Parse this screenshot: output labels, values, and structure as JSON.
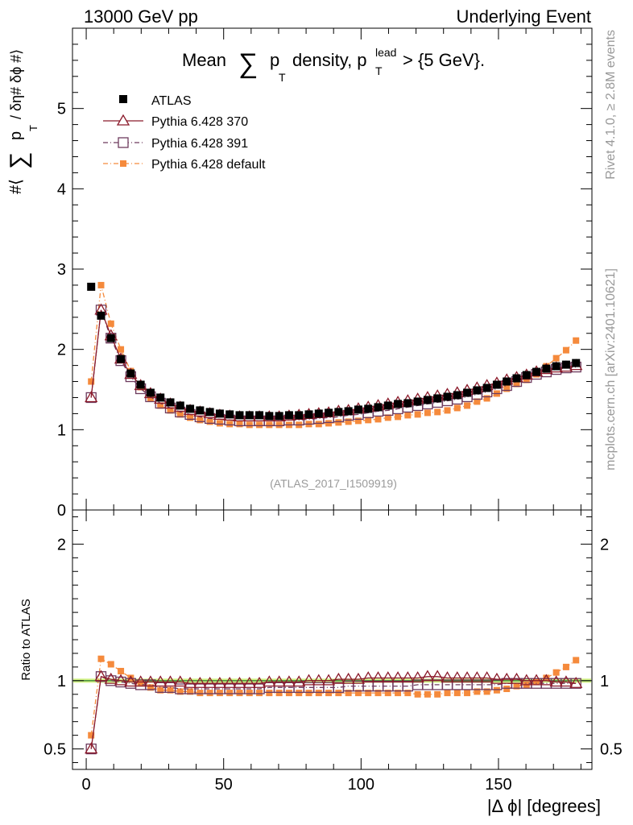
{
  "header": {
    "left": "13000 GeV pp",
    "right": "Underlying Event"
  },
  "side_labels": {
    "rivet": "Rivet 4.1.0, ≥ 2.8M events",
    "mcplots": "mcplots.cern.ch [arXiv:2401.10621]"
  },
  "chart_data": {
    "type": "scatter",
    "title_main": "Mean",
    "title_sum": "∑",
    "title_p": "p",
    "title_sub_T": "T",
    "title_rest": "density, p",
    "title_sup": "lead",
    "title_tail": "> {5 GeV}.",
    "ylabel_hash": "#⟨",
    "ylabel_sum": "∑",
    "ylabel_p": "p",
    "ylabel_T": "T",
    "ylabel_tail": "/ δη# δϕ #⟩",
    "xlabel": "|Δ ϕ| [degrees]",
    "ratio_ylabel": "Ratio to ATLAS",
    "watermark": "(ATLAS_2017_I1509919)",
    "xlim": [
      -5,
      184
    ],
    "ylim_main": [
      0,
      6
    ],
    "ylim_ratio": [
      0.35,
      2.25
    ],
    "x_ticks": [
      "0",
      "50",
      "100",
      "150"
    ],
    "y_ticks_main": [
      "0",
      "1",
      "2",
      "3",
      "4",
      "5"
    ],
    "y_ticks_ratio": [
      "0.5",
      "1",
      "2"
    ],
    "reference_line": 1,
    "x": [
      1.8,
      5.4,
      9.0,
      12.6,
      16.2,
      19.8,
      23.4,
      27.0,
      30.6,
      34.2,
      37.8,
      41.4,
      45.0,
      48.6,
      52.2,
      55.8,
      59.4,
      63.0,
      66.6,
      70.2,
      73.8,
      77.4,
      81.0,
      84.6,
      88.2,
      91.8,
      95.4,
      99.0,
      102.6,
      106.2,
      109.8,
      113.4,
      117.0,
      120.6,
      124.2,
      127.8,
      131.4,
      135.0,
      138.6,
      142.2,
      145.8,
      149.4,
      153.0,
      156.6,
      160.2,
      163.8,
      167.4,
      171.0,
      174.6,
      178.2
    ],
    "series": [
      {
        "name": "ATLAS",
        "marker": "square-filled",
        "color": "#000000",
        "values": [
          2.78,
          2.42,
          2.14,
          1.88,
          1.7,
          1.56,
          1.46,
          1.4,
          1.34,
          1.3,
          1.26,
          1.24,
          1.22,
          1.2,
          1.19,
          1.18,
          1.18,
          1.18,
          1.17,
          1.17,
          1.18,
          1.18,
          1.19,
          1.2,
          1.21,
          1.22,
          1.23,
          1.25,
          1.26,
          1.28,
          1.3,
          1.32,
          1.33,
          1.35,
          1.37,
          1.39,
          1.41,
          1.43,
          1.46,
          1.49,
          1.52,
          1.56,
          1.6,
          1.64,
          1.68,
          1.72,
          1.76,
          1.79,
          1.81,
          1.83
        ],
        "ratio": [
          1.0,
          1.0,
          1.0,
          1.0,
          1.0,
          1.0,
          1.0,
          1.0,
          1.0,
          1.0,
          1.0,
          1.0,
          1.0,
          1.0,
          1.0,
          1.0,
          1.0,
          1.0,
          1.0,
          1.0,
          1.0,
          1.0,
          1.0,
          1.0,
          1.0,
          1.0,
          1.0,
          1.0,
          1.0,
          1.0,
          1.0,
          1.0,
          1.0,
          1.0,
          1.0,
          1.0,
          1.0,
          1.0,
          1.0,
          1.0,
          1.0,
          1.0,
          1.0,
          1.0,
          1.0,
          1.0,
          1.0,
          1.0,
          1.0,
          1.0
        ]
      },
      {
        "name": "Pythia 6.428 370",
        "marker": "triangle-open",
        "color": "#8b1a2a",
        "values": [
          1.4,
          2.49,
          2.17,
          1.88,
          1.69,
          1.55,
          1.45,
          1.38,
          1.32,
          1.28,
          1.24,
          1.22,
          1.2,
          1.18,
          1.17,
          1.16,
          1.16,
          1.16,
          1.16,
          1.16,
          1.17,
          1.18,
          1.19,
          1.2,
          1.21,
          1.23,
          1.24,
          1.26,
          1.28,
          1.3,
          1.32,
          1.34,
          1.36,
          1.38,
          1.4,
          1.42,
          1.44,
          1.46,
          1.49,
          1.52,
          1.55,
          1.58,
          1.62,
          1.65,
          1.68,
          1.72,
          1.75,
          1.77,
          1.78,
          1.8
        ],
        "ratio": [
          0.5,
          1.03,
          1.01,
          1.0,
          0.99,
          0.99,
          0.99,
          0.99,
          0.99,
          0.99,
          0.98,
          0.98,
          0.98,
          0.98,
          0.98,
          0.98,
          0.98,
          0.98,
          0.99,
          0.99,
          0.99,
          0.99,
          1.0,
          1.0,
          1.0,
          1.01,
          1.01,
          1.01,
          1.02,
          1.02,
          1.02,
          1.02,
          1.02,
          1.02,
          1.03,
          1.03,
          1.02,
          1.02,
          1.02,
          1.02,
          1.02,
          1.01,
          1.01,
          1.01,
          1.0,
          1.0,
          1.0,
          0.99,
          0.99,
          0.98
        ]
      },
      {
        "name": "Pythia 6.428 391",
        "marker": "square-open",
        "color": "#6e3b5e",
        "values": [
          1.4,
          2.49,
          2.14,
          1.86,
          1.66,
          1.51,
          1.41,
          1.33,
          1.27,
          1.22,
          1.19,
          1.16,
          1.14,
          1.13,
          1.12,
          1.11,
          1.11,
          1.11,
          1.11,
          1.11,
          1.12,
          1.12,
          1.13,
          1.14,
          1.15,
          1.16,
          1.18,
          1.19,
          1.21,
          1.23,
          1.24,
          1.26,
          1.28,
          1.3,
          1.32,
          1.34,
          1.36,
          1.38,
          1.41,
          1.44,
          1.47,
          1.51,
          1.55,
          1.6,
          1.65,
          1.69,
          1.72,
          1.75,
          1.77,
          1.78
        ],
        "ratio": [
          0.5,
          1.03,
          1.0,
          0.99,
          0.98,
          0.97,
          0.97,
          0.95,
          0.95,
          0.94,
          0.94,
          0.94,
          0.94,
          0.94,
          0.94,
          0.94,
          0.94,
          0.94,
          0.95,
          0.95,
          0.95,
          0.95,
          0.95,
          0.95,
          0.95,
          0.95,
          0.96,
          0.96,
          0.96,
          0.96,
          0.96,
          0.96,
          0.96,
          0.97,
          0.97,
          0.97,
          0.97,
          0.97,
          0.97,
          0.97,
          0.97,
          0.97,
          0.98,
          0.98,
          0.98,
          0.98,
          0.98,
          0.98,
          0.98,
          0.98
        ]
      },
      {
        "name": "Pythia 6.428 default",
        "marker": "square-filled-small",
        "color": "#f58a3c",
        "values": [
          1.6,
          2.8,
          2.32,
          2.0,
          1.73,
          1.53,
          1.39,
          1.3,
          1.24,
          1.19,
          1.15,
          1.12,
          1.1,
          1.08,
          1.07,
          1.07,
          1.06,
          1.06,
          1.06,
          1.06,
          1.06,
          1.06,
          1.07,
          1.07,
          1.08,
          1.09,
          1.1,
          1.11,
          1.12,
          1.13,
          1.15,
          1.16,
          1.18,
          1.19,
          1.21,
          1.22,
          1.24,
          1.27,
          1.3,
          1.35,
          1.39,
          1.45,
          1.51,
          1.57,
          1.62,
          1.69,
          1.79,
          1.89,
          1.99,
          2.11
        ],
        "ratio": [
          0.6,
          1.16,
          1.12,
          1.07,
          1.02,
          0.98,
          0.95,
          0.93,
          0.93,
          0.92,
          0.92,
          0.91,
          0.91,
          0.91,
          0.91,
          0.91,
          0.91,
          0.91,
          0.91,
          0.91,
          0.91,
          0.91,
          0.91,
          0.91,
          0.91,
          0.91,
          0.91,
          0.91,
          0.91,
          0.91,
          0.91,
          0.91,
          0.91,
          0.9,
          0.9,
          0.9,
          0.91,
          0.91,
          0.91,
          0.92,
          0.92,
          0.93,
          0.94,
          0.96,
          0.97,
          0.99,
          1.02,
          1.06,
          1.1,
          1.15
        ]
      }
    ]
  }
}
